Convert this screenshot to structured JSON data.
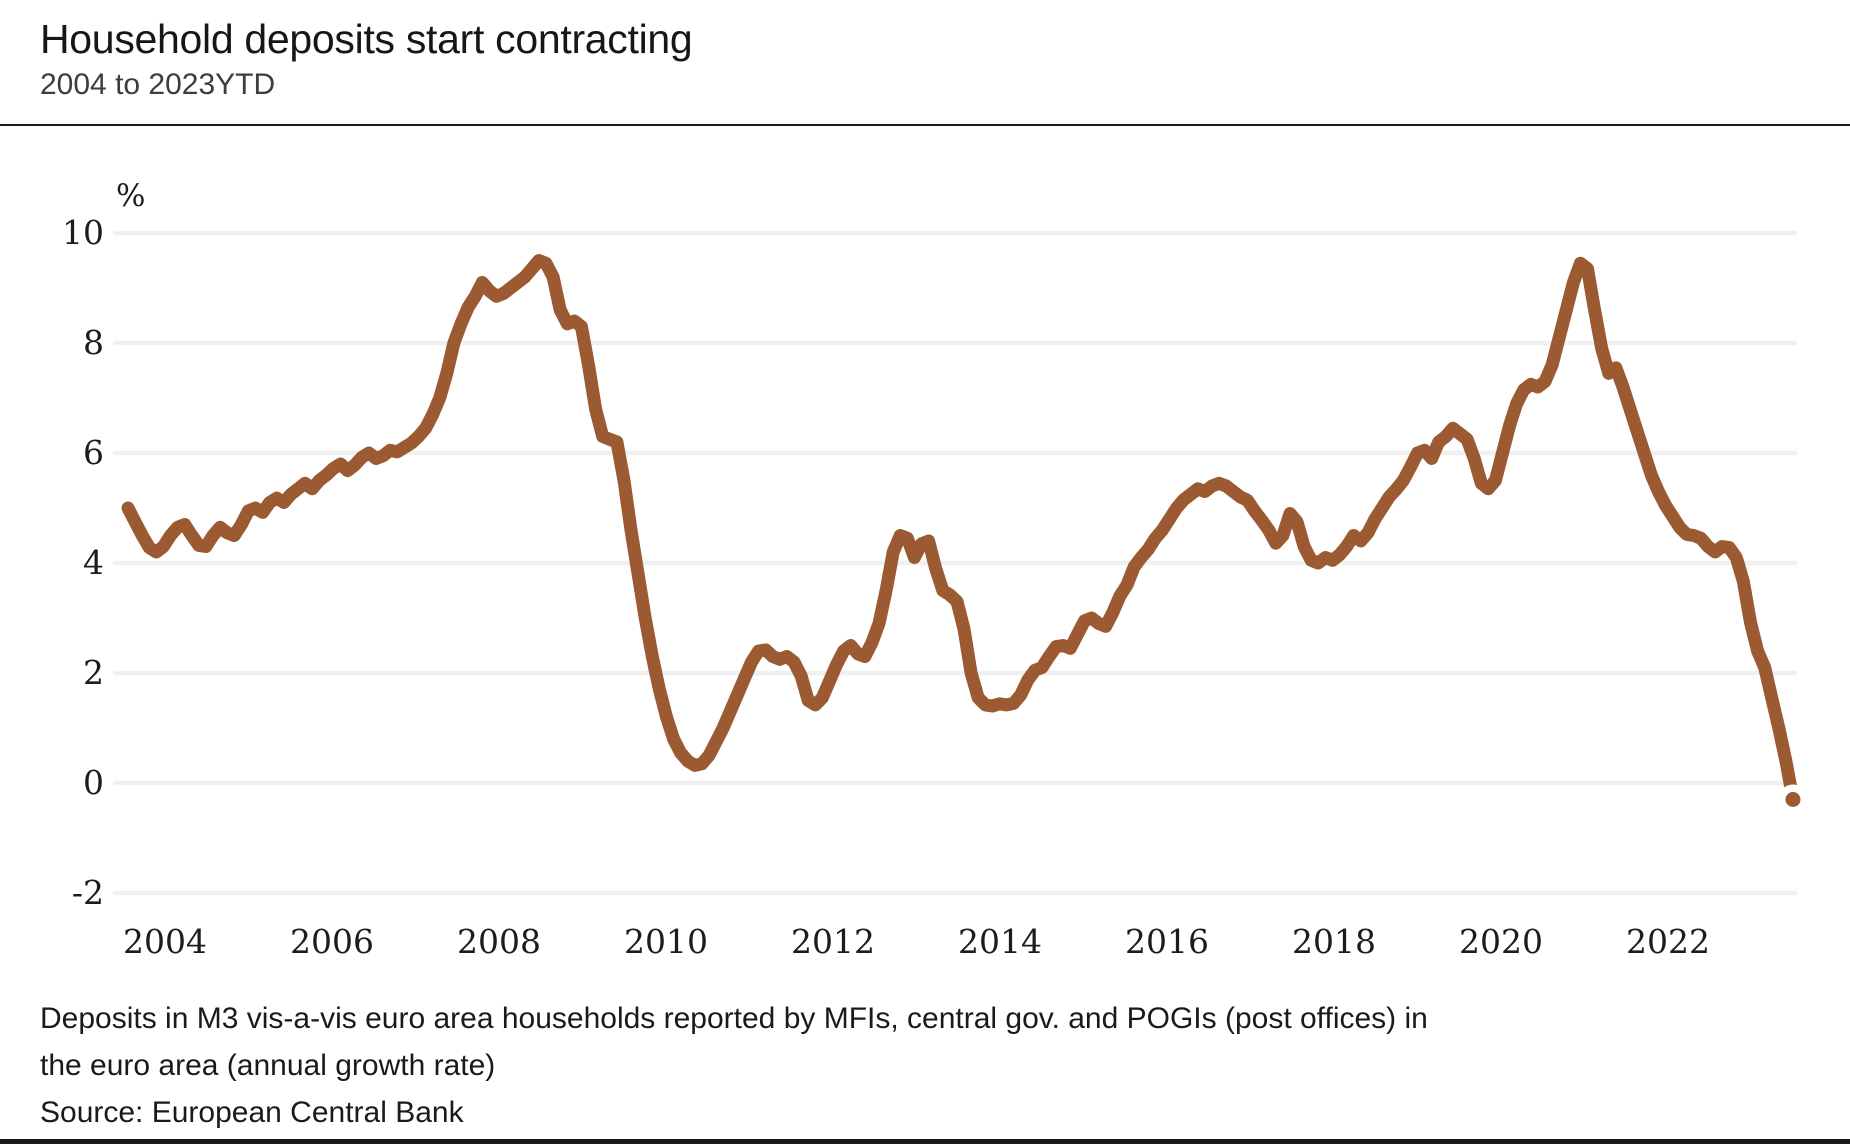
{
  "header": {
    "title": "Household deposits start contracting",
    "subtitle": "2004 to 2023YTD"
  },
  "footnote": {
    "line1": "Deposits in M3 vis-a-vis euro area households reported by MFIs, central gov. and POGIs (post offices) in",
    "line2": "the euro area (annual growth rate)",
    "source": "Source: European Central Bank"
  },
  "chart_data": {
    "type": "line",
    "title": "Household deposits start contracting",
    "subtitle": "2004 to 2023YTD",
    "unit_label": "%",
    "xlabel": "",
    "ylabel": "%",
    "ylim": [
      -2,
      10
    ],
    "y_ticks": [
      10,
      8,
      6,
      4,
      2,
      0,
      -2
    ],
    "x_year_labels": [
      2004,
      2006,
      2008,
      2010,
      2012,
      2014,
      2016,
      2018,
      2020,
      2022
    ],
    "grid": "horizontal",
    "legend": "none",
    "line_color": "#9C5A33",
    "grid_color": "#F0F0F0",
    "end_dot": true,
    "series": [
      {
        "name": "Household deposits, annual growth rate (%)",
        "frequency": "monthly",
        "start": "2004-01",
        "end": "2023-08",
        "values": [
          5.0,
          4.75,
          4.5,
          4.28,
          4.2,
          4.3,
          4.5,
          4.65,
          4.7,
          4.5,
          4.32,
          4.3,
          4.5,
          4.65,
          4.55,
          4.5,
          4.7,
          4.95,
          5.0,
          4.92,
          5.1,
          5.18,
          5.1,
          5.25,
          5.35,
          5.45,
          5.35,
          5.5,
          5.6,
          5.72,
          5.8,
          5.68,
          5.78,
          5.92,
          6.0,
          5.9,
          5.95,
          6.05,
          6.02,
          6.1,
          6.18,
          6.3,
          6.45,
          6.7,
          7.0,
          7.45,
          8.0,
          8.35,
          8.65,
          8.85,
          9.1,
          8.95,
          8.85,
          8.9,
          9.0,
          9.1,
          9.2,
          9.35,
          9.5,
          9.45,
          9.2,
          8.6,
          8.35,
          8.4,
          8.3,
          7.6,
          6.8,
          6.3,
          6.25,
          6.2,
          5.5,
          4.6,
          3.8,
          3.0,
          2.3,
          1.7,
          1.2,
          0.8,
          0.55,
          0.4,
          0.32,
          0.35,
          0.5,
          0.75,
          1.0,
          1.3,
          1.6,
          1.9,
          2.2,
          2.4,
          2.42,
          2.3,
          2.25,
          2.3,
          2.2,
          1.95,
          1.5,
          1.42,
          1.55,
          1.85,
          2.15,
          2.4,
          2.5,
          2.35,
          2.3,
          2.55,
          2.9,
          3.5,
          4.2,
          4.5,
          4.45,
          4.1,
          4.35,
          4.4,
          3.9,
          3.5,
          3.42,
          3.3,
          2.8,
          2.0,
          1.55,
          1.42,
          1.4,
          1.44,
          1.42,
          1.45,
          1.6,
          1.87,
          2.05,
          2.1,
          2.3,
          2.48,
          2.5,
          2.45,
          2.7,
          2.95,
          3.0,
          2.9,
          2.85,
          3.1,
          3.4,
          3.6,
          3.93,
          4.1,
          4.25,
          4.45,
          4.6,
          4.8,
          5.0,
          5.15,
          5.25,
          5.35,
          5.3,
          5.4,
          5.45,
          5.4,
          5.3,
          5.2,
          5.14,
          4.95,
          4.78,
          4.6,
          4.36,
          4.5,
          4.9,
          4.75,
          4.3,
          4.05,
          4.0,
          4.1,
          4.05,
          4.15,
          4.3,
          4.5,
          4.4,
          4.55,
          4.8,
          5.0,
          5.2,
          5.34,
          5.5,
          5.74,
          6.0,
          6.05,
          5.9,
          6.2,
          6.3,
          6.45,
          6.35,
          6.25,
          5.9,
          5.45,
          5.35,
          5.5,
          6.0,
          6.5,
          6.9,
          7.15,
          7.25,
          7.2,
          7.3,
          7.6,
          8.1,
          8.6,
          9.1,
          9.45,
          9.35,
          8.6,
          7.9,
          7.45,
          7.55,
          7.2,
          6.8,
          6.4,
          6.0,
          5.6,
          5.3,
          5.05,
          4.85,
          4.65,
          4.52,
          4.5,
          4.45,
          4.3,
          4.2,
          4.3,
          4.28,
          4.1,
          3.66,
          2.92,
          2.4,
          2.1,
          1.55,
          1.0,
          0.4,
          -0.3
        ]
      }
    ]
  }
}
